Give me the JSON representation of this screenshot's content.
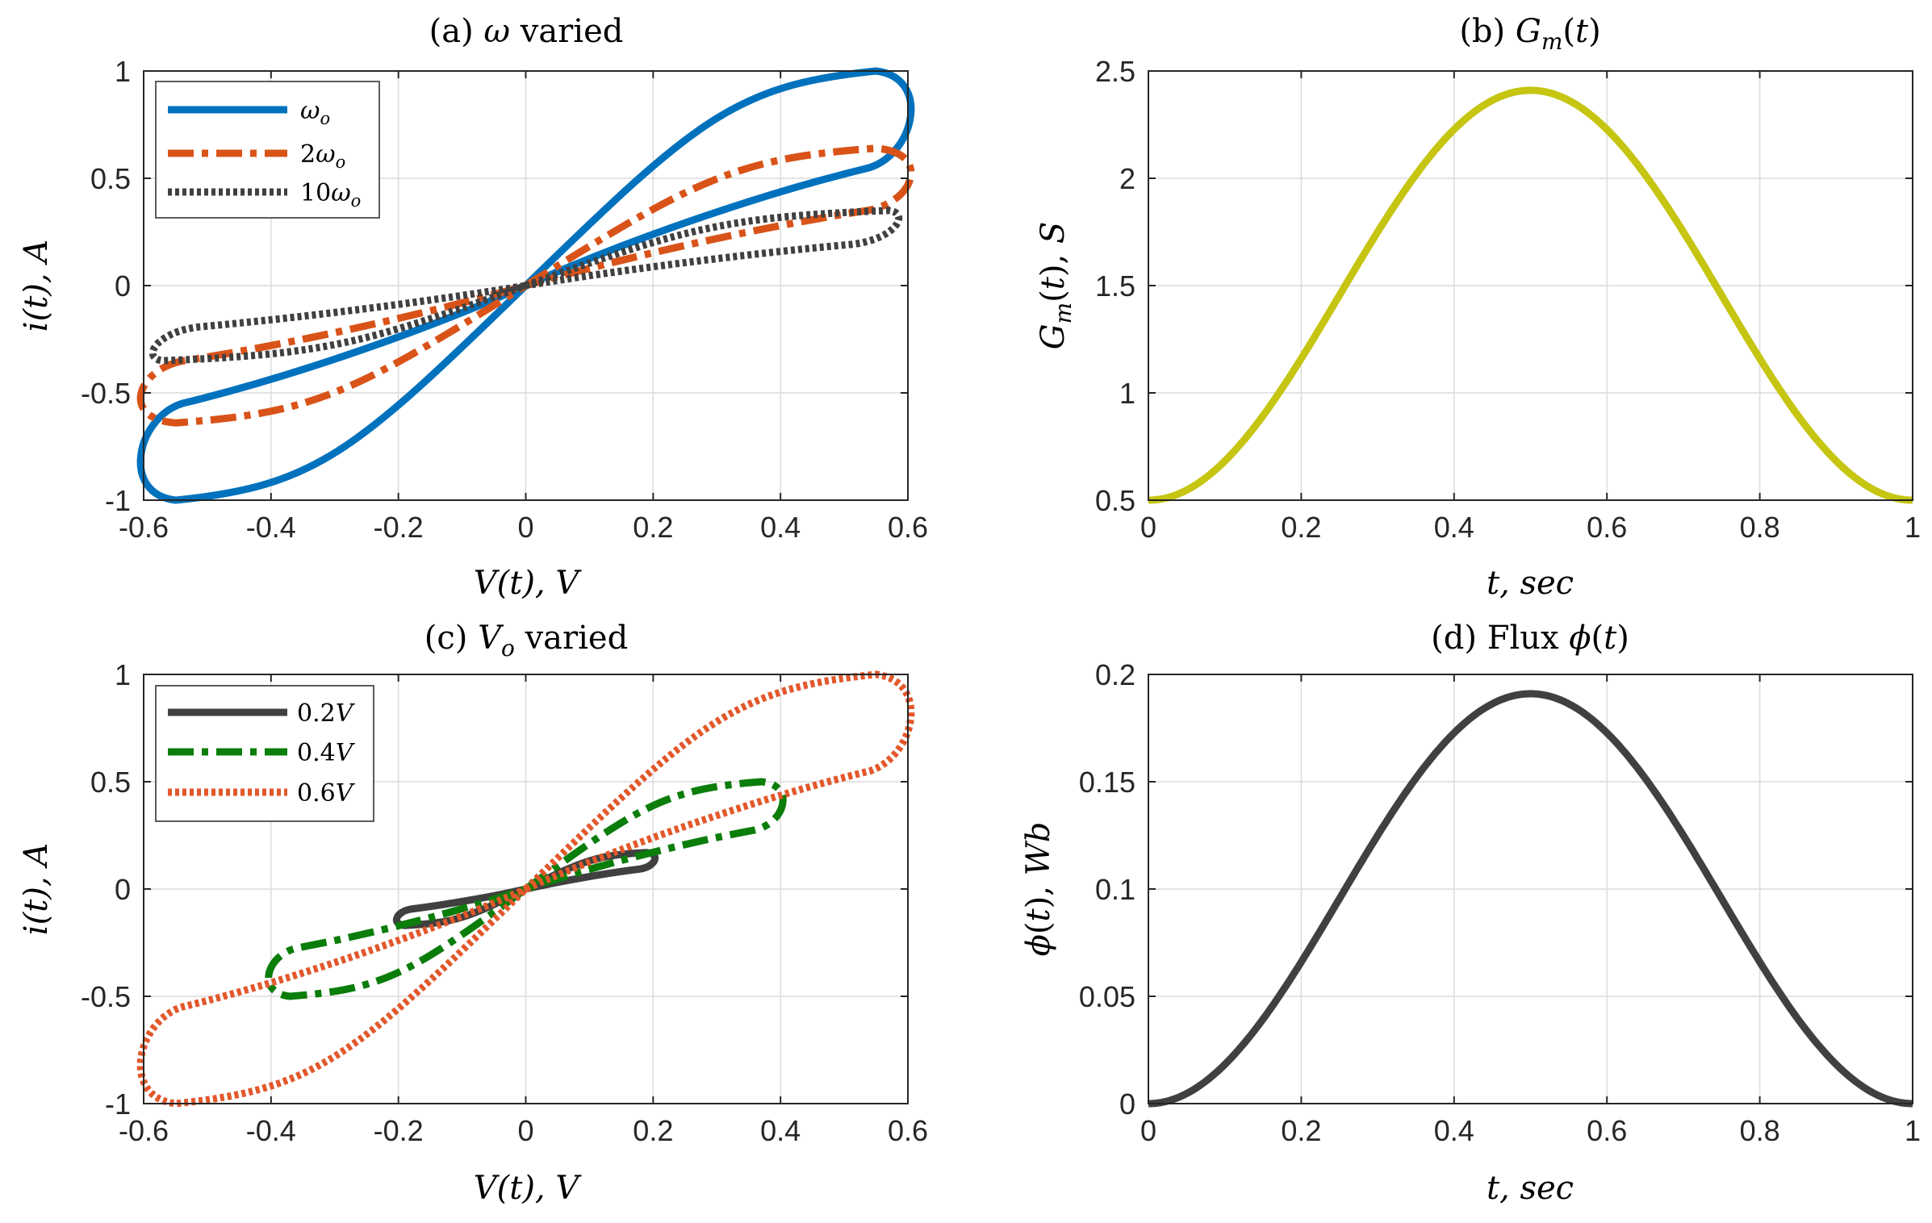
{
  "figure": {
    "width_note": "2x2 grid of MATLAB-style subplots (memristor characterization)"
  },
  "chart_data": [
    {
      "id": "a",
      "type": "line",
      "kind": "lissajous",
      "title": "(a) ω varied",
      "xlabel": "V(t), V",
      "ylabel": "i(t), A",
      "xlim": [
        -0.6,
        0.6
      ],
      "ylim": [
        -1,
        1
      ],
      "xticks": [
        -0.6,
        -0.4,
        -0.2,
        0,
        0.2,
        0.4,
        0.6
      ],
      "xtick_labels": [
        "-0.6",
        "-0.4",
        "-0.2",
        "0",
        "0.2",
        "0.4",
        "0.6"
      ],
      "yticks": [
        -1,
        -0.5,
        0,
        0.5,
        1
      ],
      "ytick_labels": [
        "-1",
        "-0.5",
        "0",
        "0.5",
        "1"
      ],
      "grid": true,
      "legend_position": "top-left",
      "series": [
        {
          "name": "ωo",
          "label": "ω",
          "sub": "o",
          "color": "#0072BD",
          "dash": "solid",
          "V0": 0.6,
          "Imax": 1.0,
          "Vpk": 0.55,
          "ctrl_k": 0.35
        },
        {
          "name": "2ωo",
          "label": "2ω",
          "sub": "o",
          "color": "#D95319",
          "dash": "dashdot",
          "V0": 0.6,
          "Imax": 0.64,
          "Vpk": 0.55,
          "ctrl_k": 0.18
        },
        {
          "name": "10ωo",
          "label": "10ω",
          "sub": "o",
          "color": "#404040",
          "dash": "dotted",
          "V0": 0.57,
          "Imax": 0.35,
          "Vpk": 0.57,
          "ctrl_k": 0.04
        }
      ]
    },
    {
      "id": "b",
      "type": "line",
      "kind": "raised_cosine",
      "title": "(b) Gm(t)",
      "xlabel": "t, sec",
      "ylabel": "Gm(t), S",
      "xlim": [
        0,
        1
      ],
      "ylim": [
        0.5,
        2.5
      ],
      "xticks": [
        0,
        0.2,
        0.4,
        0.6,
        0.8,
        1
      ],
      "xtick_labels": [
        "0",
        "0.2",
        "0.4",
        "0.6",
        "0.8",
        "1"
      ],
      "yticks": [
        0.5,
        1,
        1.5,
        2,
        2.5
      ],
      "ytick_labels": [
        "0.5",
        "1",
        "1.5",
        "2",
        "2.5"
      ],
      "grid": true,
      "series": [
        {
          "name": "Gm(t)",
          "color": "#C5C512",
          "base": 0.5,
          "peak": 2.41
        }
      ]
    },
    {
      "id": "c",
      "type": "line",
      "kind": "lissajous",
      "title": "(c) Vo varied",
      "xlabel": "V(t), V",
      "ylabel": "i(t), A",
      "xlim": [
        -0.6,
        0.6
      ],
      "ylim": [
        -1,
        1
      ],
      "xticks": [
        -0.6,
        -0.4,
        -0.2,
        0,
        0.2,
        0.4,
        0.6
      ],
      "xtick_labels": [
        "-0.6",
        "-0.4",
        "-0.2",
        "0",
        "0.2",
        "0.4",
        "0.6"
      ],
      "yticks": [
        -1,
        -0.5,
        0,
        0.5,
        1
      ],
      "ytick_labels": [
        "-1",
        "-0.5",
        "0",
        "0.5",
        "1"
      ],
      "grid": true,
      "legend_position": "top-left",
      "series": [
        {
          "name": "0.2V",
          "label": "0.2",
          "unit": "V",
          "color": "#404040",
          "dash": "solid",
          "V0": 0.2,
          "Imax": 0.17,
          "Vpk": 0.19,
          "ctrl_k": 0.05
        },
        {
          "name": "0.4V",
          "label": "0.4",
          "unit": "V",
          "color": "#0A7D0A",
          "dash": "dashdot",
          "V0": 0.4,
          "Imax": 0.5,
          "Vpk": 0.37,
          "ctrl_k": 0.16
        },
        {
          "name": "0.6V",
          "label": "0.6",
          "unit": "V",
          "color": "#E2582B",
          "dash": "dotted",
          "V0": 0.6,
          "Imax": 1.0,
          "Vpk": 0.55,
          "ctrl_k": 0.35
        }
      ]
    },
    {
      "id": "d",
      "type": "line",
      "kind": "raised_cosine",
      "title": "(d) Flux ϕ(t)",
      "xlabel": "t, sec",
      "ylabel": "ϕ(t), Wb",
      "xlim": [
        0,
        1
      ],
      "ylim": [
        0,
        0.2
      ],
      "xticks": [
        0,
        0.2,
        0.4,
        0.6,
        0.8,
        1
      ],
      "xtick_labels": [
        "0",
        "0.2",
        "0.4",
        "0.6",
        "0.8",
        "1"
      ],
      "yticks": [
        0,
        0.05,
        0.1,
        0.15,
        0.2
      ],
      "ytick_labels": [
        "0",
        "0.05",
        "0.1",
        "0.15",
        "0.2"
      ],
      "grid": true,
      "series": [
        {
          "name": "ϕ(t)",
          "color": "#404040",
          "base": 0,
          "peak": 0.191
        }
      ]
    }
  ]
}
